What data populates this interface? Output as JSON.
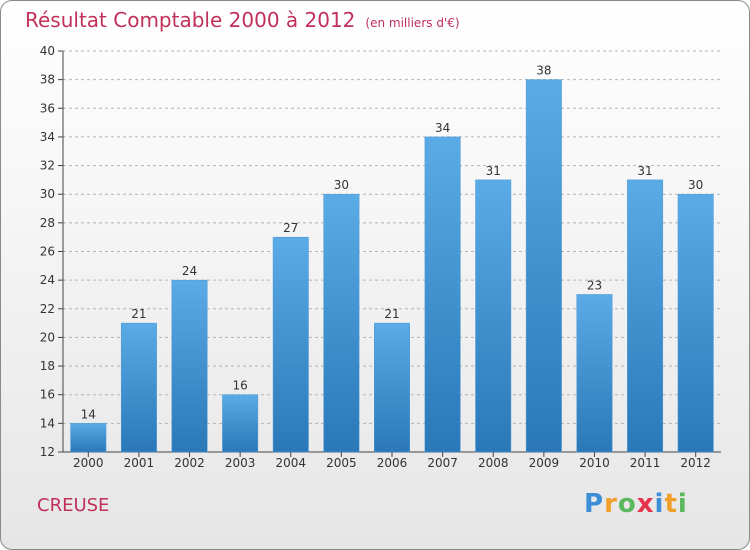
{
  "title": "Résultat Comptable 2000 à 2012",
  "subtitle": "(en milliers d'€)",
  "region": "CREUSE",
  "logo": {
    "letters": [
      "P",
      "r",
      "o",
      "x",
      "i",
      "t",
      "i"
    ],
    "colors": [
      "#3c8fd6",
      "#f0a02a",
      "#5cb85c",
      "#e6334b",
      "#3c8fd6",
      "#f0a02a",
      "#5cb85c"
    ]
  },
  "colors": {
    "bar_top": "#5aabe6",
    "bar_bottom": "#2a78b8",
    "title": "#c0305a",
    "grid": "#b4b4b4",
    "axis": "#444444"
  },
  "chart_data": {
    "type": "bar",
    "title": "Résultat Comptable 2000 à 2012",
    "xlabel": "",
    "ylabel": "",
    "categories": [
      "2000",
      "2001",
      "2002",
      "2003",
      "2004",
      "2005",
      "2006",
      "2007",
      "2008",
      "2009",
      "2010",
      "2011",
      "2012"
    ],
    "values": [
      14,
      21,
      24,
      16,
      27,
      30,
      21,
      34,
      31,
      38,
      23,
      31,
      30
    ],
    "ylim": [
      12,
      40
    ],
    "yticks": [
      12,
      14,
      16,
      18,
      20,
      22,
      24,
      26,
      28,
      30,
      32,
      34,
      36,
      38,
      40
    ],
    "grid": true,
    "legend": "none"
  }
}
